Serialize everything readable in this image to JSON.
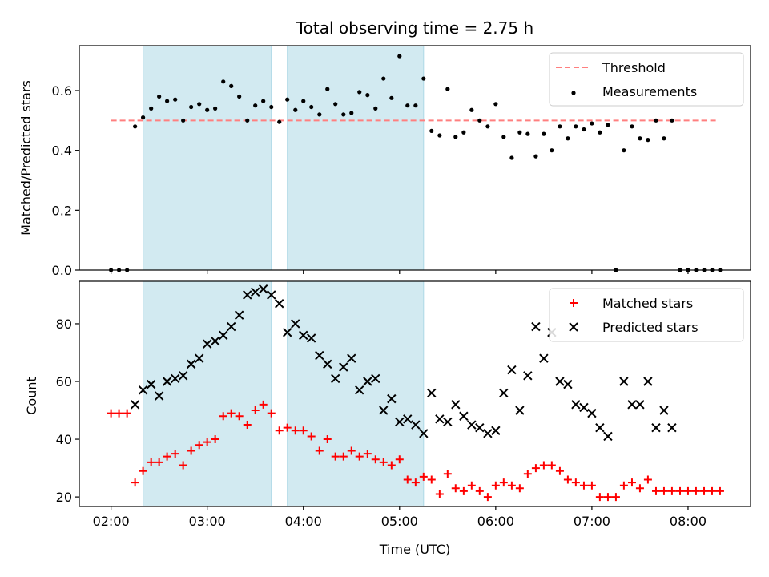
{
  "chart_data": {
    "title": "Total observing time = 2.75 h",
    "xlabel": "Time (UTC)",
    "x_unit": "hours UTC",
    "xlim": [
      1.67,
      8.65
    ],
    "xticks": [
      {
        "value": 2,
        "label": "02:00"
      },
      {
        "value": 3,
        "label": "03:00"
      },
      {
        "value": 4,
        "label": "04:00"
      },
      {
        "value": 5,
        "label": "05:00"
      },
      {
        "value": 6,
        "label": "06:00"
      },
      {
        "value": 7,
        "label": "07:00"
      },
      {
        "value": 8,
        "label": "08:00"
      }
    ],
    "shaded_intervals": [
      [
        2.333,
        3.667
      ],
      [
        3.833,
        5.25
      ]
    ],
    "shade_color": "#add8e6",
    "panels": [
      {
        "type": "scatter",
        "ylabel": "Matched/Predicted stars",
        "ylim": [
          0,
          0.75
        ],
        "yticks": [
          {
            "value": 0,
            "label": "0.0"
          },
          {
            "value": 0.2,
            "label": "0.2"
          },
          {
            "value": 0.4,
            "label": "0.4"
          },
          {
            "value": 0.6,
            "label": "0.6"
          }
        ],
        "threshold": {
          "name": "Threshold",
          "y": 0.5,
          "x_range": [
            2.0,
            8.3
          ],
          "color": "#ff7f7f"
        },
        "legend": {
          "placement": "upper right",
          "entries": [
            "Threshold",
            "Measurements"
          ]
        },
        "series": [
          {
            "name": "Measurements",
            "marker": "dot",
            "color": "#000000",
            "x": [
              2.0,
              2.083,
              2.167,
              2.25,
              2.333,
              2.417,
              2.5,
              2.583,
              2.667,
              2.75,
              2.833,
              2.917,
              3.0,
              3.083,
              3.167,
              3.25,
              3.333,
              3.417,
              3.5,
              3.583,
              3.667,
              3.75,
              3.833,
              3.917,
              4.0,
              4.083,
              4.167,
              4.25,
              4.333,
              4.417,
              4.5,
              4.583,
              4.667,
              4.75,
              4.833,
              4.917,
              5.0,
              5.083,
              5.167,
              5.25,
              5.333,
              5.417,
              5.5,
              5.583,
              5.667,
              5.75,
              5.833,
              5.917,
              6.0,
              6.083,
              6.167,
              6.25,
              6.333,
              6.417,
              6.5,
              6.583,
              6.667,
              6.75,
              6.833,
              6.917,
              7.0,
              7.083,
              7.167,
              7.25,
              7.333,
              7.417,
              7.5,
              7.583,
              7.667,
              7.75,
              7.833,
              7.917,
              8.0,
              8.083,
              8.167,
              8.25,
              8.333
            ],
            "y": [
              0.0,
              0.0,
              0.0,
              0.48,
              0.51,
              0.54,
              0.58,
              0.565,
              0.57,
              0.5,
              0.545,
              0.555,
              0.535,
              0.54,
              0.63,
              0.615,
              0.58,
              0.5,
              0.55,
              0.565,
              0.545,
              0.495,
              0.57,
              0.535,
              0.565,
              0.545,
              0.52,
              0.605,
              0.555,
              0.52,
              0.525,
              0.595,
              0.585,
              0.54,
              0.64,
              0.575,
              0.715,
              0.55,
              0.55,
              0.64,
              0.465,
              0.45,
              0.605,
              0.445,
              0.46,
              0.535,
              0.5,
              0.48,
              0.555,
              0.445,
              0.375,
              0.46,
              0.455,
              0.38,
              0.455,
              0.4,
              0.48,
              0.44,
              0.48,
              0.47,
              0.49,
              0.46,
              0.485,
              0.0,
              0.4,
              0.48,
              0.44,
              0.435,
              0.5,
              0.44,
              0.5,
              0.0,
              0.0,
              0.0,
              0.0,
              0.0,
              0.0
            ]
          }
        ]
      },
      {
        "type": "scatter",
        "ylabel": "Count",
        "ylim": [
          16.7,
          94.7
        ],
        "yticks": [
          {
            "value": 20,
            "label": "20"
          },
          {
            "value": 40,
            "label": "40"
          },
          {
            "value": 60,
            "label": "60"
          },
          {
            "value": 80,
            "label": "80"
          }
        ],
        "legend": {
          "placement": "upper right",
          "entries": [
            "Matched stars",
            "Predicted stars"
          ]
        },
        "series": [
          {
            "name": "Matched stars",
            "marker": "plus",
            "color": "#ff0000",
            "x": [
              2.0,
              2.083,
              2.167,
              2.25,
              2.333,
              2.417,
              2.5,
              2.583,
              2.667,
              2.75,
              2.833,
              2.917,
              3.0,
              3.083,
              3.167,
              3.25,
              3.333,
              3.417,
              3.5,
              3.583,
              3.667,
              3.75,
              3.833,
              3.917,
              4.0,
              4.083,
              4.167,
              4.25,
              4.333,
              4.417,
              4.5,
              4.583,
              4.667,
              4.75,
              4.833,
              4.917,
              5.0,
              5.083,
              5.167,
              5.25,
              5.333,
              5.417,
              5.5,
              5.583,
              5.667,
              5.75,
              5.833,
              5.917,
              6.0,
              6.083,
              6.167,
              6.25,
              6.333,
              6.417,
              6.5,
              6.583,
              6.667,
              6.75,
              6.833,
              6.917,
              7.0,
              7.083,
              7.167,
              7.25,
              7.333,
              7.417,
              7.5,
              7.583,
              7.667,
              7.75,
              7.833,
              7.917,
              8.0,
              8.083,
              8.167,
              8.25,
              8.333
            ],
            "y": [
              49,
              49,
              49,
              25,
              29,
              32,
              32,
              34,
              35,
              31,
              36,
              38,
              39,
              40,
              48,
              49,
              48,
              45,
              50,
              52,
              49,
              43,
              44,
              43,
              43,
              41,
              36,
              40,
              34,
              34,
              36,
              34,
              35,
              33,
              32,
              31,
              33,
              26,
              25,
              27,
              26,
              21,
              28,
              23,
              22,
              24,
              22,
              20,
              24,
              25,
              24,
              23,
              28,
              30,
              31,
              31,
              29,
              26,
              25,
              24,
              24,
              20,
              20,
              20,
              24,
              25,
              23,
              26,
              22,
              22,
              22,
              22,
              22,
              22,
              22,
              22,
              22
            ]
          },
          {
            "name": "Predicted stars",
            "marker": "x",
            "color": "#000000",
            "x": [
              2.25,
              2.333,
              2.417,
              2.5,
              2.583,
              2.667,
              2.75,
              2.833,
              2.917,
              3.0,
              3.083,
              3.167,
              3.25,
              3.333,
              3.417,
              3.5,
              3.583,
              3.667,
              3.75,
              3.833,
              3.917,
              4.0,
              4.083,
              4.167,
              4.25,
              4.333,
              4.417,
              4.5,
              4.583,
              4.667,
              4.75,
              4.833,
              4.917,
              5.0,
              5.083,
              5.167,
              5.25,
              5.333,
              5.417,
              5.5,
              5.583,
              5.667,
              5.75,
              5.833,
              5.917,
              6.0,
              6.083,
              6.167,
              6.25,
              6.333,
              6.417,
              6.5,
              6.583,
              6.667,
              6.75,
              6.833,
              6.917,
              7.0,
              7.083,
              7.167,
              7.333,
              7.417,
              7.5,
              7.583,
              7.667,
              7.75,
              7.833
            ],
            "y": [
              52,
              57,
              59,
              55,
              60,
              61,
              62,
              66,
              68,
              73,
              74,
              76,
              79,
              83,
              90,
              91,
              92,
              90,
              87,
              77,
              80,
              76,
              75,
              69,
              66,
              61,
              65,
              68,
              57,
              60,
              61,
              50,
              54,
              46,
              47,
              45,
              42,
              56,
              47,
              46,
              52,
              48,
              45,
              44,
              42,
              43,
              56,
              64,
              50,
              62,
              79,
              68,
              77,
              60,
              59,
              52,
              51,
              49,
              44,
              41,
              60,
              52,
              52,
              60,
              44,
              50,
              44
            ]
          }
        ]
      }
    ]
  }
}
